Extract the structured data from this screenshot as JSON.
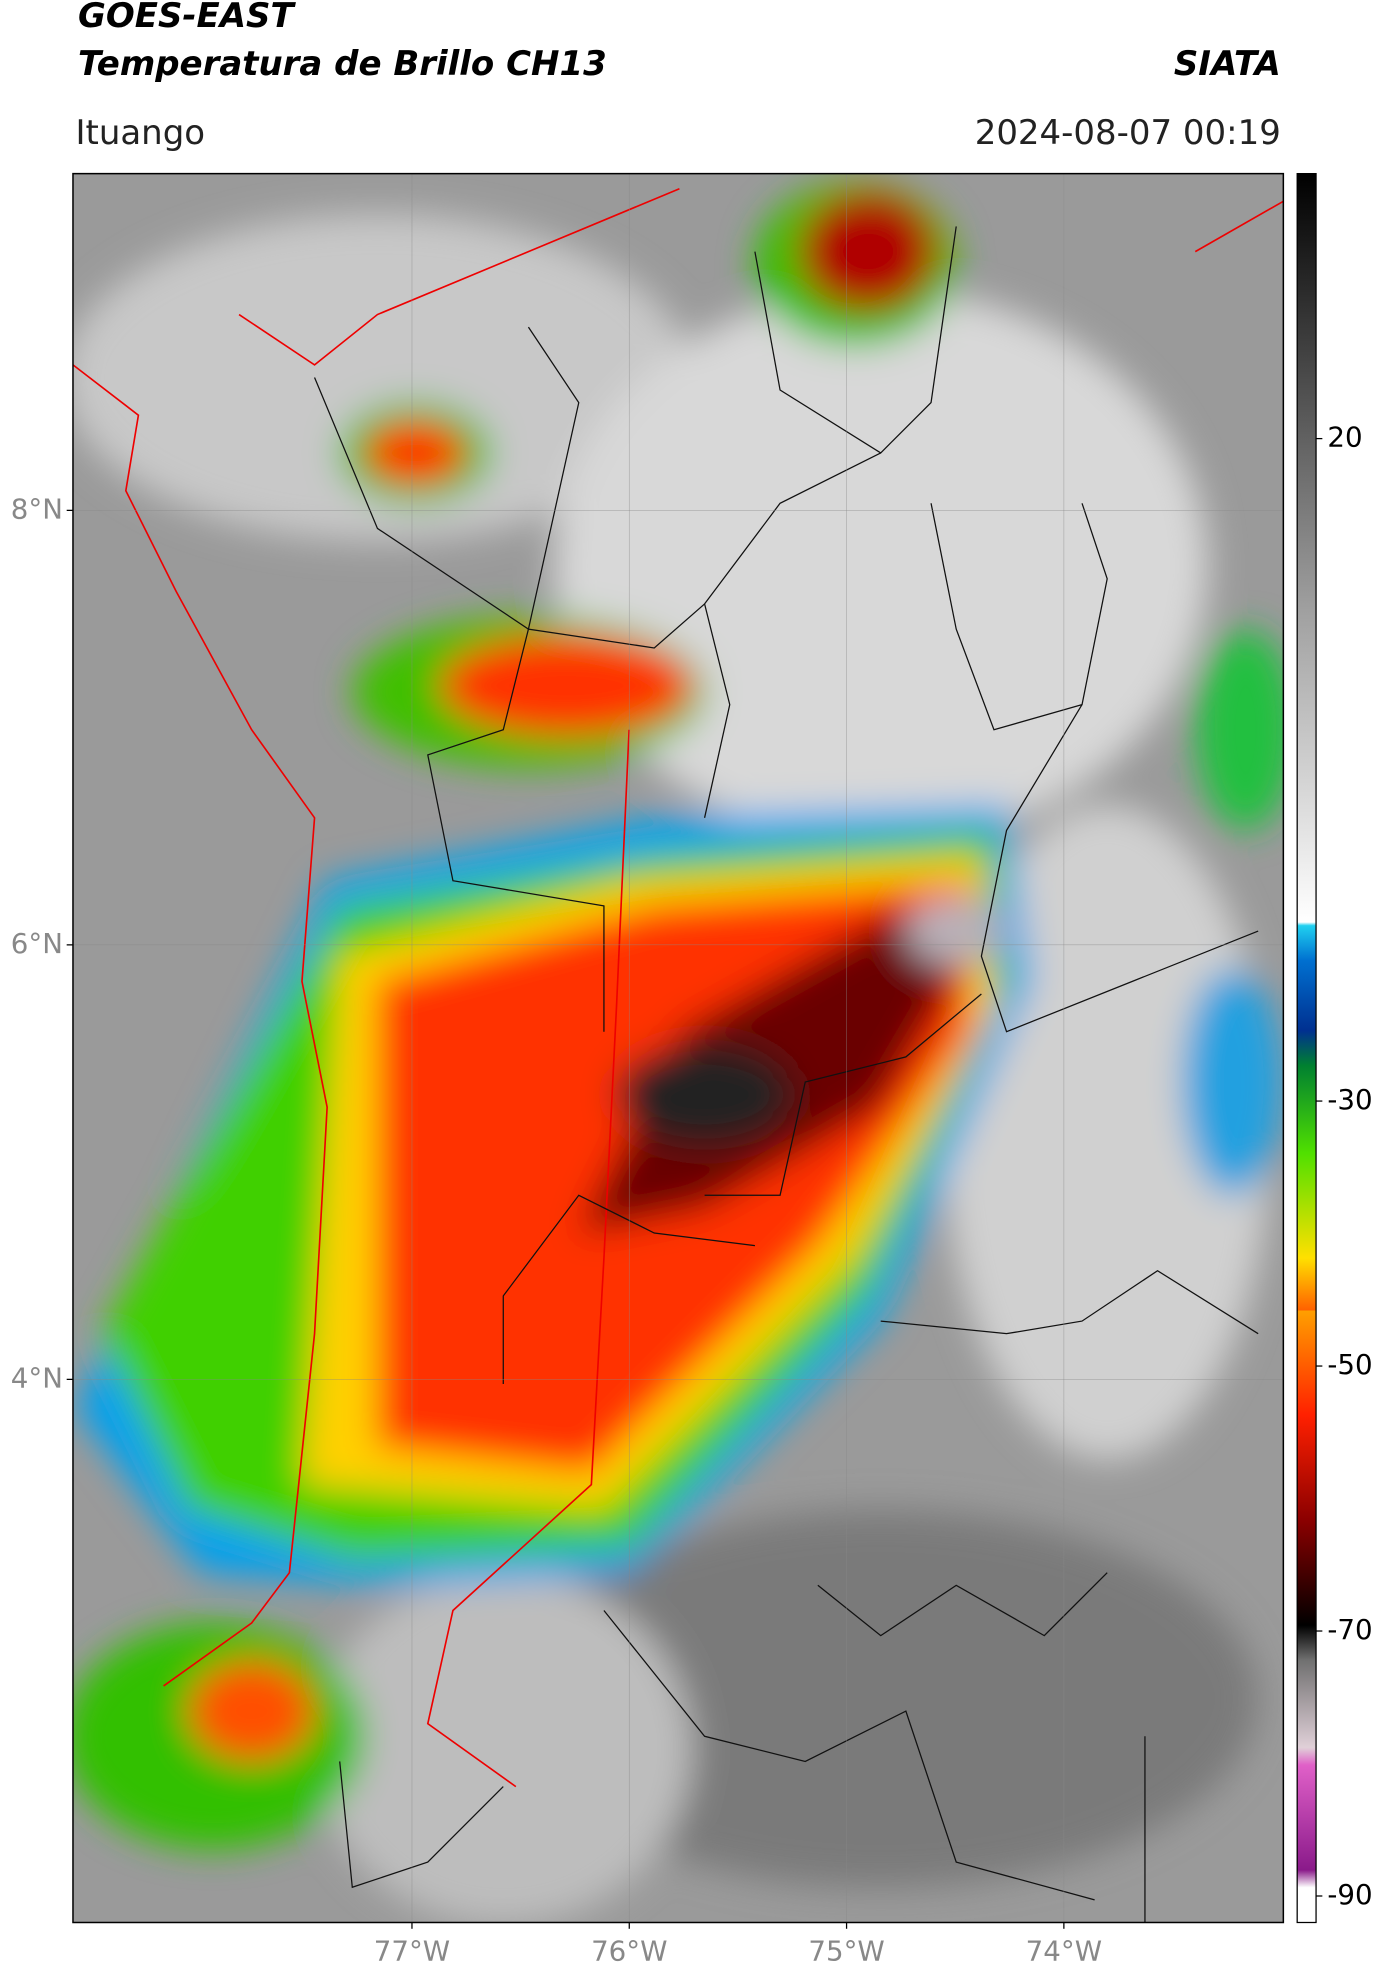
{
  "header": {
    "title": "GOES-EAST",
    "subtitle": "Temperatura de Brillo CH13",
    "source": "SIATA",
    "location": "Ituango",
    "datetime": "2024-08-07 00:19"
  },
  "map": {
    "lat_range": [
      1.5,
      9.55
    ],
    "lon_range": [
      -78.56,
      -72.99
    ],
    "lat_ticks": [
      {
        "value": 8,
        "label": "8°N"
      },
      {
        "value": 6,
        "label": "6°N"
      },
      {
        "value": 4,
        "label": "4°N"
      }
    ],
    "lon_ticks": [
      {
        "value": -77,
        "label": "77°W"
      },
      {
        "value": -76,
        "label": "76°W"
      },
      {
        "value": -75,
        "label": "75°W"
      },
      {
        "value": -74,
        "label": "74°W"
      }
    ]
  },
  "colorbar": {
    "range": [
      -92,
      40
    ],
    "ticks": [
      20,
      -30,
      -50,
      -70,
      -90
    ]
  }
}
